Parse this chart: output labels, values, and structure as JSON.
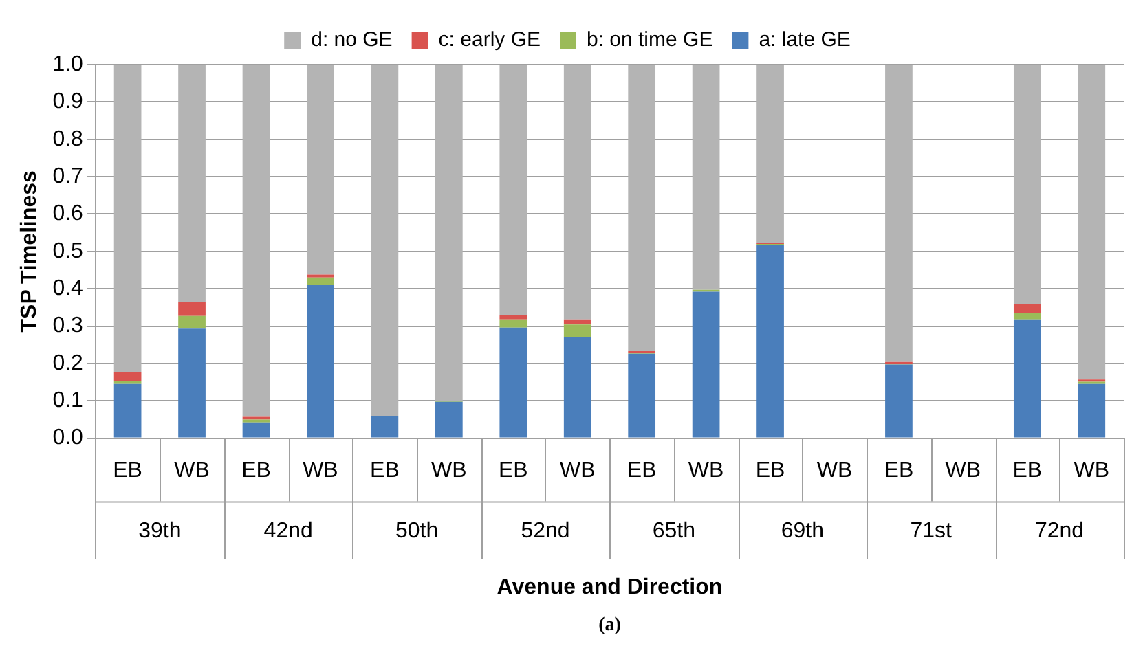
{
  "chart_data": {
    "type": "bar",
    "stacked": true,
    "ylabel": "TSP Timeliness",
    "xlabel": "Avenue and Direction",
    "categories": [
      "EB",
      "WB",
      "EB",
      "WB",
      "EB",
      "WB",
      "EB",
      "WB",
      "EB",
      "WB",
      "EB",
      "WB",
      "EB",
      "WB",
      "EB",
      "WB"
    ],
    "series": [
      {
        "name": "a: late GE",
        "color": "#4a7ebb",
        "values": [
          0.145,
          0.293,
          0.042,
          0.411,
          0.059,
          0.097,
          0.296,
          0.27,
          0.226,
          0.392,
          0.518,
          null,
          0.197,
          null,
          0.318,
          0.145
        ]
      },
      {
        "name": "b: on time GE",
        "color": "#9bbb59",
        "values": [
          0.007,
          0.034,
          0.008,
          0.019,
          0,
          0.003,
          0.022,
          0.034,
          0.002,
          0.005,
          0.002,
          null,
          0.003,
          null,
          0.018,
          0.006
        ]
      },
      {
        "name": "c: early GE",
        "color": "#d9534f",
        "values": [
          0.025,
          0.038,
          0.007,
          0.008,
          0,
          0,
          0.012,
          0.014,
          0.005,
          0,
          0.003,
          null,
          0.004,
          null,
          0.022,
          0.006
        ]
      },
      {
        "name": "d: no GE",
        "color": "#b4b4b4",
        "values": [
          0.823,
          0.635,
          0.943,
          0.562,
          0.941,
          0.9,
          0.67,
          0.682,
          0.767,
          0.603,
          0.477,
          null,
          0.796,
          null,
          0.642,
          0.843
        ]
      }
    ],
    "ylim": [
      0,
      1
    ],
    "yticks": [
      {
        "value": 0,
        "label": "0.0"
      },
      {
        "value": 0.1,
        "label": "0.1"
      },
      {
        "value": 0.2,
        "label": "0.2"
      },
      {
        "value": 0.3,
        "label": "0.3"
      },
      {
        "value": 0.4,
        "label": "0.4"
      },
      {
        "value": 0.5,
        "label": "0.5"
      },
      {
        "value": 0.6,
        "label": "0.6"
      },
      {
        "value": 0.7,
        "label": "0.7"
      },
      {
        "value": 0.8,
        "label": "0.8"
      },
      {
        "value": 0.9,
        "label": "0.9"
      },
      {
        "value": 1,
        "label": "1.0"
      }
    ],
    "grid": "y",
    "legend": "top",
    "annotations": [
      "39th",
      "42nd",
      "50th",
      "52nd",
      "65th",
      "69th",
      "71st",
      "72nd",
      "(a)"
    ]
  }
}
